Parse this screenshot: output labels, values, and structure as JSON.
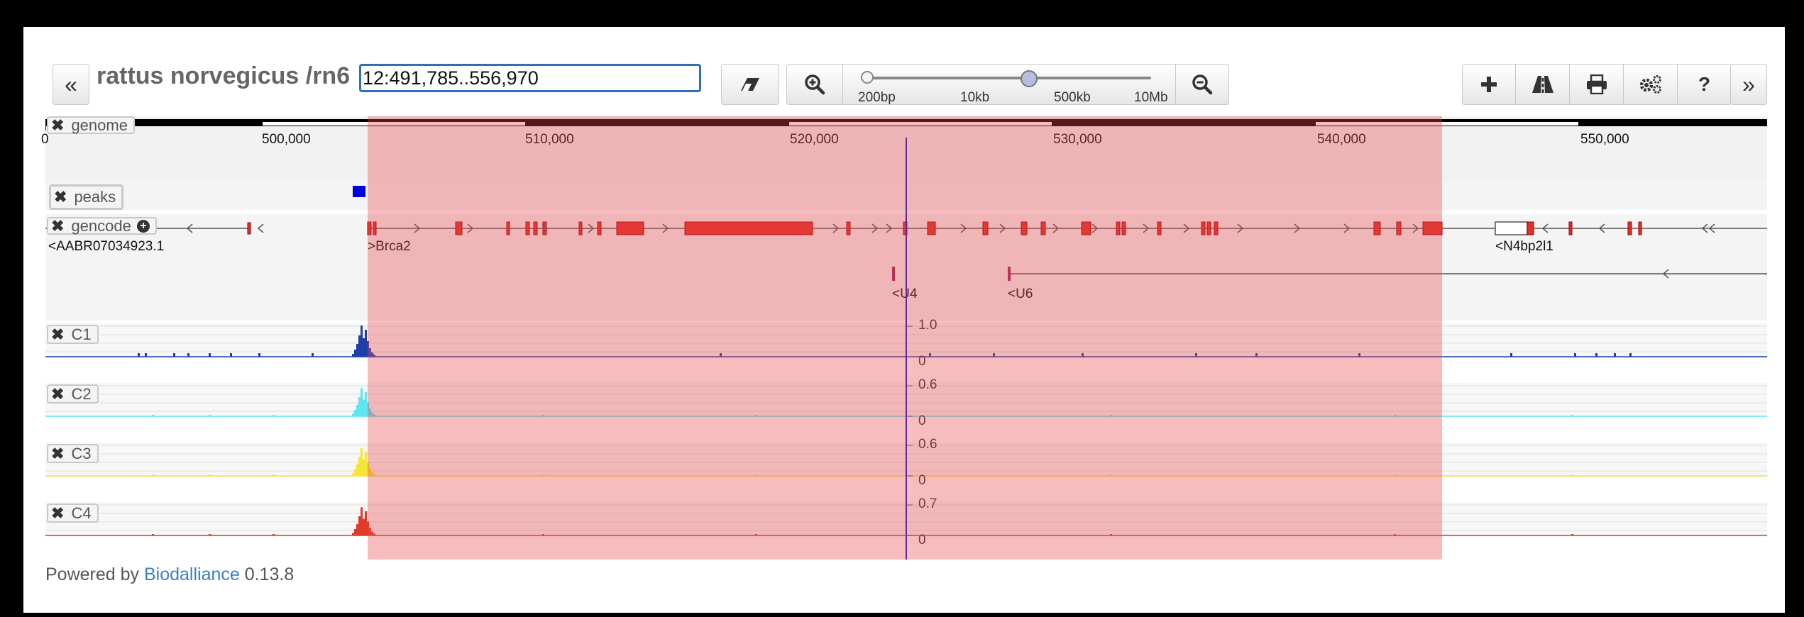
{
  "toolbar": {
    "collapse_left": "«",
    "collapse_right": "»",
    "species": "rattus norvegicus /rn6",
    "location": "12:491,785..556,970",
    "zoom_ticks": [
      "200bp",
      "10kb",
      "500kb",
      "10Mb"
    ],
    "zoom_level": 0.57,
    "buttons": [
      "add-track",
      "track-search",
      "export",
      "options",
      "help"
    ]
  },
  "ruler": {
    "ticks": [
      "500,000",
      "510,000",
      "520,000",
      "530,000",
      "540,000",
      "550,000"
    ],
    "left_partial": "0"
  },
  "tracks": {
    "genome": "genome",
    "peaks": "peaks",
    "gencode": "gencode",
    "c1": "C1",
    "c2": "C2",
    "c3": "C3",
    "c4": "C4"
  },
  "genes": {
    "aabr": "<AABR07034923.1",
    "brca2": ">Brca2",
    "n4bp2l1": "<N4bp2l1",
    "u4": "<U4",
    "u6": "<U6"
  },
  "axes": {
    "c1_max": "1.0",
    "c1_min": "0",
    "c2_max": "0.6",
    "c2_min": "0",
    "c3_max": "0.6",
    "c3_min": "0",
    "c4_max": "0.7",
    "c4_min": "0"
  },
  "colors": {
    "c1": "#1f3fa8",
    "c2": "#5ee6f0",
    "c3": "#f5e535",
    "c4": "#e03a2a",
    "highlight": "#e9494a",
    "exon": "#e0302a"
  },
  "footer": {
    "powered_by": "Powered by",
    "link": "Biodalliance",
    "version": "0.13.8"
  }
}
